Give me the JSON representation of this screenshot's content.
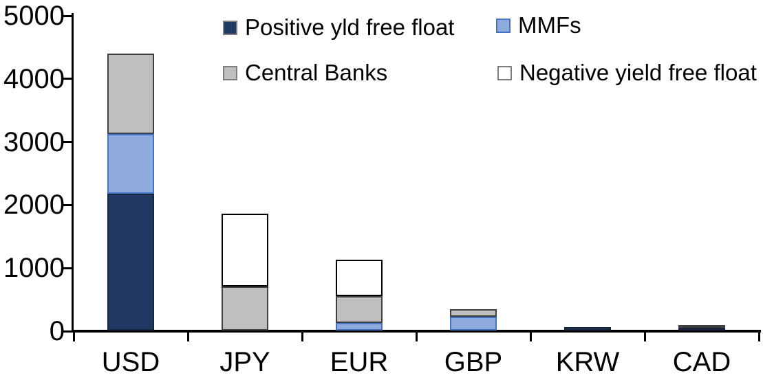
{
  "chart_data": {
    "type": "bar",
    "stacked": true,
    "categories": [
      "USD",
      "JPY",
      "EUR",
      "GBP",
      "KRW",
      "CAD"
    ],
    "series": [
      {
        "name": "Positive yld free float",
        "color": "#1F3864",
        "border_color": "#17263E",
        "values": [
          2170,
          0,
          0,
          0,
          50,
          40
        ]
      },
      {
        "name": "MMFs",
        "color": "#8FAADC",
        "border_color": "#4472C4",
        "values": [
          950,
          0,
          120,
          220,
          0,
          0
        ]
      },
      {
        "name": "Central Banks",
        "color": "#BFBFBF",
        "border_color": "#404040",
        "values": [
          1270,
          700,
          425,
          120,
          0,
          45
        ]
      },
      {
        "name": "Negative yield free float",
        "color": "#FFFFFF",
        "border_color": "#000000",
        "values": [
          0,
          1150,
          575,
          0,
          0,
          0
        ]
      }
    ],
    "totals": {
      "USD": 4390,
      "JPY": 1850,
      "EUR": 1120,
      "GBP": 340,
      "KRW": 50,
      "CAD": 85
    },
    "ylim": [
      0,
      5000
    ],
    "yticks": [
      0,
      1000,
      2000,
      3000,
      4000,
      5000
    ],
    "grid": false,
    "legend_position": "top",
    "legend_rows": [
      [
        "Positive yld free float",
        "MMFs"
      ],
      [
        "Central Banks",
        "Negative yield free float"
      ]
    ],
    "axis_color": "#000000",
    "title": "",
    "xlabel": "",
    "ylabel": ""
  }
}
